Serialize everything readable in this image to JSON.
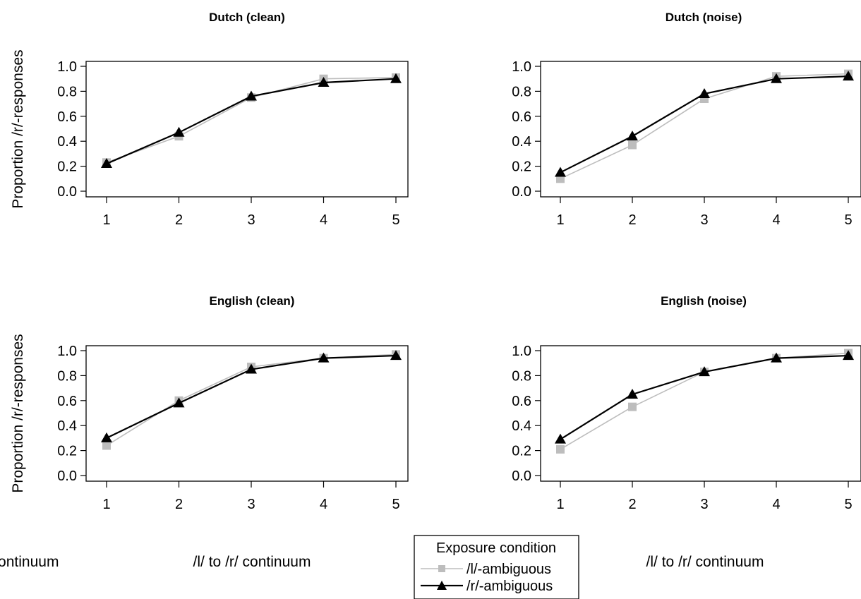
{
  "legend": {
    "title": "Exposure condition",
    "entries": [
      {
        "label": "/l/-ambiguous",
        "color": "#bdbdbd",
        "marker": "square"
      },
      {
        "label": "/r/-ambiguous",
        "color": "#000000",
        "marker": "triangle"
      }
    ]
  },
  "chart_data": [
    {
      "type": "line",
      "title": "Dutch (clean)",
      "xlabel": "/l/ to /r/ continuum",
      "ylabel": "Proportion /r/-responses",
      "x": [
        1,
        2,
        3,
        4,
        5
      ],
      "xticks": [
        "1",
        "2",
        "3",
        "4",
        "5"
      ],
      "yticks": [
        "0.0",
        "0.2",
        "0.4",
        "0.6",
        "0.8",
        "1.0"
      ],
      "ylim": [
        0,
        1
      ],
      "grid": false,
      "series": [
        {
          "name": "/l/-ambiguous",
          "values": [
            0.23,
            0.44,
            0.75,
            0.9,
            0.91
          ]
        },
        {
          "name": "/r/-ambiguous",
          "values": [
            0.22,
            0.47,
            0.76,
            0.87,
            0.9
          ]
        }
      ]
    },
    {
      "type": "line",
      "title": "Dutch (noise)",
      "xlabel": "/l/ to /r/ continuum",
      "ylabel": "",
      "x": [
        1,
        2,
        3,
        4,
        5
      ],
      "xticks": [
        "1",
        "2",
        "3",
        "4",
        "5"
      ],
      "yticks": [
        "0.0",
        "0.2",
        "0.4",
        "0.6",
        "0.8",
        "1.0"
      ],
      "ylim": [
        0,
        1
      ],
      "grid": false,
      "series": [
        {
          "name": "/l/-ambiguous",
          "values": [
            0.1,
            0.37,
            0.74,
            0.92,
            0.94
          ]
        },
        {
          "name": "/r/-ambiguous",
          "values": [
            0.15,
            0.44,
            0.78,
            0.9,
            0.92
          ]
        }
      ]
    },
    {
      "type": "line",
      "title": "English (clean)",
      "xlabel": "",
      "ylabel": "Proportion /r/-responses",
      "x": [
        1,
        2,
        3,
        4,
        5
      ],
      "xticks": [
        "1",
        "2",
        "3",
        "4",
        "5"
      ],
      "yticks": [
        "0.0",
        "0.2",
        "0.4",
        "0.6",
        "0.8",
        "1.0"
      ],
      "ylim": [
        0,
        1
      ],
      "grid": false,
      "series": [
        {
          "name": "/l/-ambiguous",
          "values": [
            0.24,
            0.6,
            0.87,
            0.94,
            0.97
          ]
        },
        {
          "name": "/r/-ambiguous",
          "values": [
            0.3,
            0.58,
            0.85,
            0.94,
            0.96
          ]
        }
      ]
    },
    {
      "type": "line",
      "title": "English (noise)",
      "xlabel": "/l/ to /r/ continuum",
      "ylabel": "",
      "x": [
        1,
        2,
        3,
        4,
        5
      ],
      "xticks": [
        "1",
        "2",
        "3",
        "4",
        "5"
      ],
      "yticks": [
        "0.0",
        "0.2",
        "0.4",
        "0.6",
        "0.8",
        "1.0"
      ],
      "ylim": [
        0,
        1
      ],
      "grid": false,
      "series": [
        {
          "name": "/l/-ambiguous",
          "values": [
            0.21,
            0.55,
            0.83,
            0.94,
            0.98
          ]
        },
        {
          "name": "/r/-ambiguous",
          "values": [
            0.29,
            0.65,
            0.83,
            0.94,
            0.96
          ]
        }
      ]
    }
  ]
}
